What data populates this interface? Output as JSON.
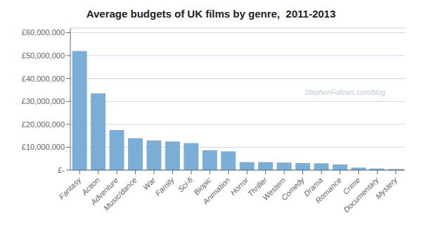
{
  "chart_data": {
    "type": "bar",
    "title": "Average budgets of UK films by genre,  2011-2013",
    "categories": [
      "Fantasy",
      "Action",
      "Adventure",
      "Music/dance",
      "War",
      "Family",
      "Sci-fi",
      "Biopic",
      "Animation",
      "Horror",
      "Thriller",
      "Western",
      "Comedy",
      "Drama",
      "Romance",
      "Crime",
      "Documentary",
      "Mystery"
    ],
    "values": [
      52000000,
      33500000,
      17500000,
      14000000,
      13000000,
      12500000,
      11800000,
      8700000,
      8200000,
      3500000,
      3500000,
      3300000,
      3100000,
      3000000,
      2500000,
      1100000,
      700000,
      500000
    ],
    "color": "#7aaed6",
    "ylim": [
      0,
      62000000
    ],
    "yticks": [
      {
        "value": 0,
        "label": "£-"
      },
      {
        "value": 10000000,
        "label": "£10,000,000"
      },
      {
        "value": 20000000,
        "label": "£20,000,000"
      },
      {
        "value": 30000000,
        "label": "£30,000,000"
      },
      {
        "value": 40000000,
        "label": "£40,000,000"
      },
      {
        "value": 50000000,
        "label": "£50,000,000"
      },
      {
        "value": 60000000,
        "label": "£60,000,000"
      }
    ],
    "grid": true,
    "annotations": [
      "StephenFollows.com/blog"
    ]
  }
}
